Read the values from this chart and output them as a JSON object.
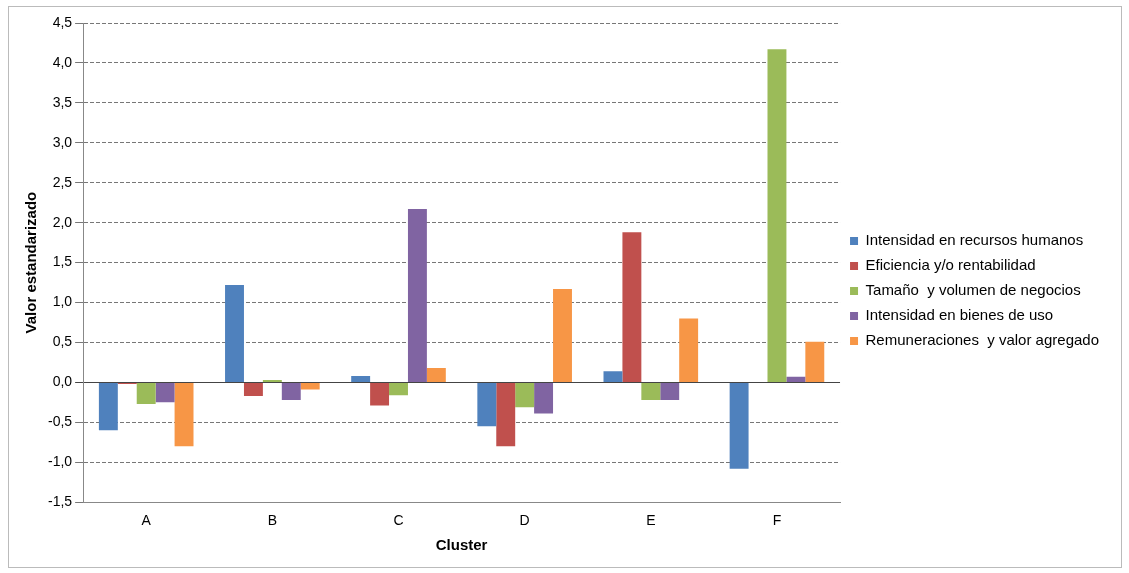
{
  "chart_data": {
    "type": "bar",
    "xlabel": "Cluster",
    "ylabel": "Valor estandarizado",
    "categories": [
      "A",
      "B",
      "C",
      "D",
      "E",
      "F"
    ],
    "series": [
      {
        "name": "Intensidad en recursos humanos",
        "color": "#4f81bd",
        "values": [
          -0.6,
          1.22,
          0.08,
          -0.55,
          0.14,
          -1.08
        ]
      },
      {
        "name": "Eficiencia y/o rentabilidad",
        "color": "#c0504d",
        "values": [
          -0.02,
          -0.17,
          -0.29,
          -0.8,
          1.88,
          null
        ]
      },
      {
        "name": "Tamaño  y volumen de negocios",
        "color": "#9bbb59",
        "values": [
          -0.27,
          0.03,
          -0.16,
          -0.31,
          -0.22,
          4.17
        ]
      },
      {
        "name": "Intensidad en bienes de uso",
        "color": "#8064a2",
        "values": [
          -0.25,
          -0.22,
          2.17,
          -0.39,
          -0.22,
          0.07
        ]
      },
      {
        "name": "Remuneraciones  y valor agregado",
        "color": "#f79646",
        "values": [
          -0.8,
          -0.09,
          0.18,
          1.17,
          0.8,
          0.51
        ]
      }
    ],
    "ylim": [
      -1.5,
      4.5
    ],
    "yticks": [
      {
        "value": -1.5,
        "label": "-1,5"
      },
      {
        "value": -1,
        "label": "-1,0"
      },
      {
        "value": -0.5,
        "label": "-0,5"
      },
      {
        "value": 0,
        "label": "0,0"
      },
      {
        "value": 0.5,
        "label": "0,5"
      },
      {
        "value": 1,
        "label": "1,0"
      },
      {
        "value": 1.5,
        "label": "1,5"
      },
      {
        "value": 2,
        "label": "2,0"
      },
      {
        "value": 2.5,
        "label": "2,5"
      },
      {
        "value": 3,
        "label": "3,0"
      },
      {
        "value": 3.5,
        "label": "3,5"
      },
      {
        "value": 4,
        "label": "4,0"
      },
      {
        "value": 4.5,
        "label": "4,5"
      }
    ],
    "grid": "y",
    "legend": "right"
  }
}
